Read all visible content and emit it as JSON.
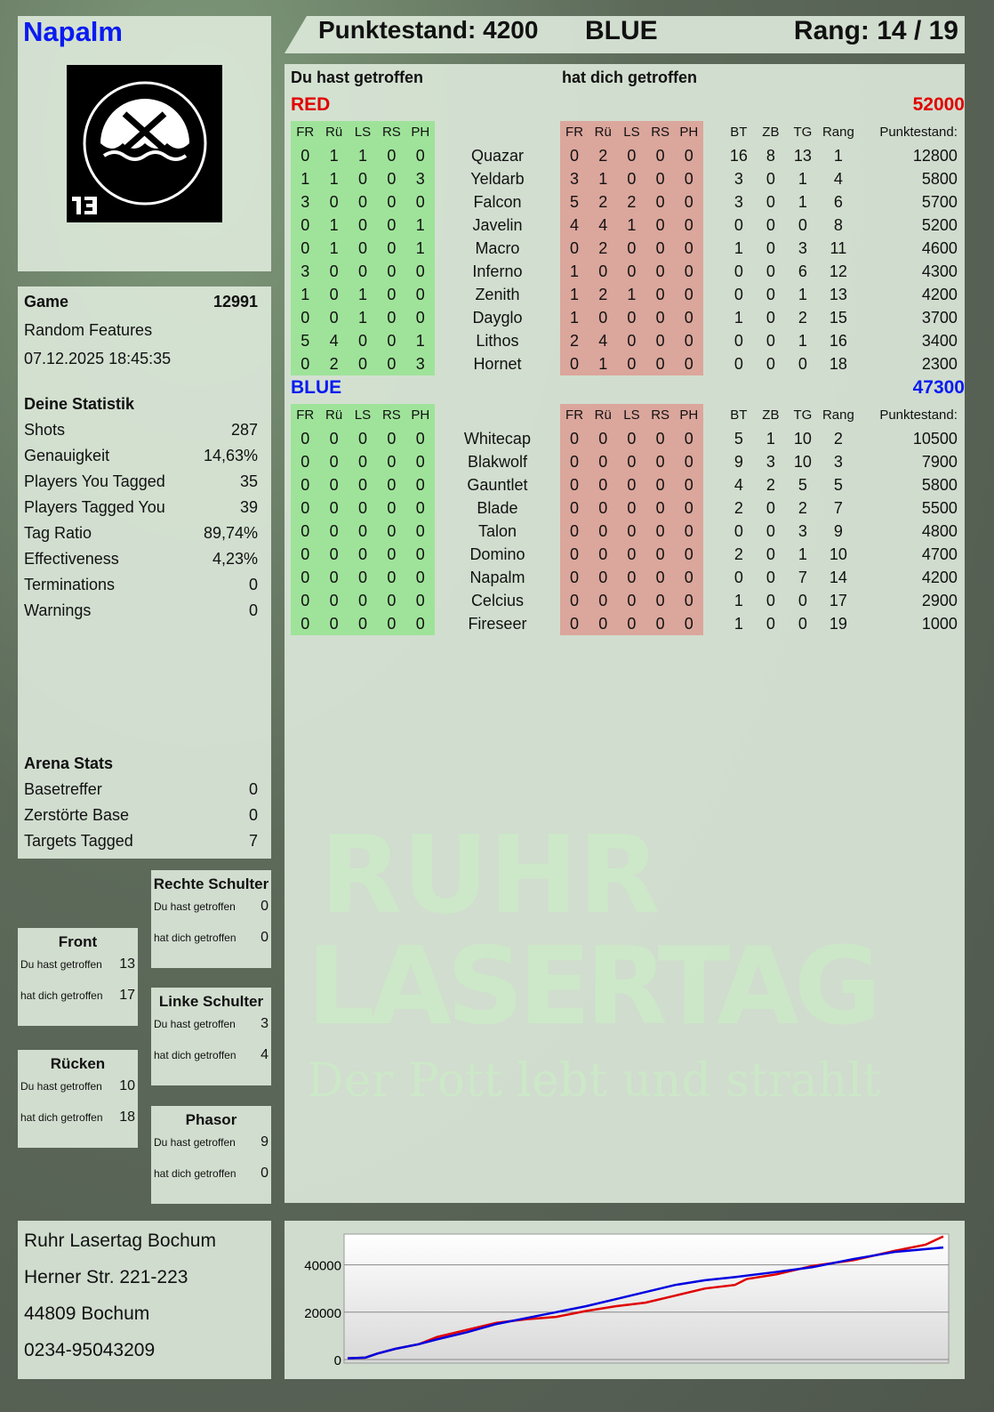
{
  "player": {
    "name": "Napalm",
    "logo_text": "RUHR LASERTAG",
    "logo_number": "13"
  },
  "header": {
    "score_label": "Punktestand: 4200",
    "team": "BLUE",
    "rank": "Rang: 14 / 19"
  },
  "main": {
    "you_hit_label": "Du hast getroffen",
    "hit_you_label": "hat dich getroffen",
    "columns": {
      "hit": [
        "FR",
        "Rü",
        "LS",
        "RS",
        "PH"
      ],
      "stats": [
        "BT",
        "ZB",
        "TG",
        "Rang",
        "Punktestand:"
      ]
    },
    "teams": [
      {
        "name": "RED",
        "score": "52000",
        "color": "#e00000",
        "players": [
          {
            "name": "Quazar",
            "you_hit": [
              0,
              1,
              1,
              0,
              0
            ],
            "hit_you": [
              0,
              2,
              0,
              0,
              0
            ],
            "bt": 16,
            "zb": 8,
            "tg": 13,
            "rang": 1,
            "score": 12800
          },
          {
            "name": "Yeldarb",
            "you_hit": [
              1,
              1,
              0,
              0,
              3
            ],
            "hit_you": [
              3,
              1,
              0,
              0,
              0
            ],
            "bt": 3,
            "zb": 0,
            "tg": 1,
            "rang": 4,
            "score": 5800
          },
          {
            "name": "Falcon",
            "you_hit": [
              3,
              0,
              0,
              0,
              0
            ],
            "hit_you": [
              5,
              2,
              2,
              0,
              0
            ],
            "bt": 3,
            "zb": 0,
            "tg": 1,
            "rang": 6,
            "score": 5700
          },
          {
            "name": "Javelin",
            "you_hit": [
              0,
              1,
              0,
              0,
              1
            ],
            "hit_you": [
              4,
              4,
              1,
              0,
              0
            ],
            "bt": 0,
            "zb": 0,
            "tg": 0,
            "rang": 8,
            "score": 5200
          },
          {
            "name": "Macro",
            "you_hit": [
              0,
              1,
              0,
              0,
              1
            ],
            "hit_you": [
              0,
              2,
              0,
              0,
              0
            ],
            "bt": 1,
            "zb": 0,
            "tg": 3,
            "rang": 11,
            "score": 4600
          },
          {
            "name": "Inferno",
            "you_hit": [
              3,
              0,
              0,
              0,
              0
            ],
            "hit_you": [
              1,
              0,
              0,
              0,
              0
            ],
            "bt": 0,
            "zb": 0,
            "tg": 6,
            "rang": 12,
            "score": 4300
          },
          {
            "name": "Zenith",
            "you_hit": [
              1,
              0,
              1,
              0,
              0
            ],
            "hit_you": [
              1,
              2,
              1,
              0,
              0
            ],
            "bt": 0,
            "zb": 0,
            "tg": 1,
            "rang": 13,
            "score": 4200
          },
          {
            "name": "Dayglo",
            "you_hit": [
              0,
              0,
              1,
              0,
              0
            ],
            "hit_you": [
              1,
              0,
              0,
              0,
              0
            ],
            "bt": 1,
            "zb": 0,
            "tg": 2,
            "rang": 15,
            "score": 3700
          },
          {
            "name": "Lithos",
            "you_hit": [
              5,
              4,
              0,
              0,
              1
            ],
            "hit_you": [
              2,
              4,
              0,
              0,
              0
            ],
            "bt": 0,
            "zb": 0,
            "tg": 1,
            "rang": 16,
            "score": 3400
          },
          {
            "name": "Hornet",
            "you_hit": [
              0,
              2,
              0,
              0,
              3
            ],
            "hit_you": [
              0,
              1,
              0,
              0,
              0
            ],
            "bt": 0,
            "zb": 0,
            "tg": 0,
            "rang": 18,
            "score": 2300
          }
        ]
      },
      {
        "name": "BLUE",
        "score": "47300",
        "color": "#0a1bf0",
        "players": [
          {
            "name": "Whitecap",
            "you_hit": [
              0,
              0,
              0,
              0,
              0
            ],
            "hit_you": [
              0,
              0,
              0,
              0,
              0
            ],
            "bt": 5,
            "zb": 1,
            "tg": 10,
            "rang": 2,
            "score": 10500
          },
          {
            "name": "Blakwolf",
            "you_hit": [
              0,
              0,
              0,
              0,
              0
            ],
            "hit_you": [
              0,
              0,
              0,
              0,
              0
            ],
            "bt": 9,
            "zb": 3,
            "tg": 10,
            "rang": 3,
            "score": 7900
          },
          {
            "name": "Gauntlet",
            "you_hit": [
              0,
              0,
              0,
              0,
              0
            ],
            "hit_you": [
              0,
              0,
              0,
              0,
              0
            ],
            "bt": 4,
            "zb": 2,
            "tg": 5,
            "rang": 5,
            "score": 5800
          },
          {
            "name": "Blade",
            "you_hit": [
              0,
              0,
              0,
              0,
              0
            ],
            "hit_you": [
              0,
              0,
              0,
              0,
              0
            ],
            "bt": 2,
            "zb": 0,
            "tg": 2,
            "rang": 7,
            "score": 5500
          },
          {
            "name": "Talon",
            "you_hit": [
              0,
              0,
              0,
              0,
              0
            ],
            "hit_you": [
              0,
              0,
              0,
              0,
              0
            ],
            "bt": 0,
            "zb": 0,
            "tg": 3,
            "rang": 9,
            "score": 4800
          },
          {
            "name": "Domino",
            "you_hit": [
              0,
              0,
              0,
              0,
              0
            ],
            "hit_you": [
              0,
              0,
              0,
              0,
              0
            ],
            "bt": 2,
            "zb": 0,
            "tg": 1,
            "rang": 10,
            "score": 4700
          },
          {
            "name": "Napalm",
            "you_hit": [
              0,
              0,
              0,
              0,
              0
            ],
            "hit_you": [
              0,
              0,
              0,
              0,
              0
            ],
            "bt": 0,
            "zb": 0,
            "tg": 7,
            "rang": 14,
            "score": 4200
          },
          {
            "name": "Celcius",
            "you_hit": [
              0,
              0,
              0,
              0,
              0
            ],
            "hit_you": [
              0,
              0,
              0,
              0,
              0
            ],
            "bt": 1,
            "zb": 0,
            "tg": 0,
            "rang": 17,
            "score": 2900
          },
          {
            "name": "Fireseer",
            "you_hit": [
              0,
              0,
              0,
              0,
              0
            ],
            "hit_you": [
              0,
              0,
              0,
              0,
              0
            ],
            "bt": 1,
            "zb": 0,
            "tg": 0,
            "rang": 19,
            "score": 1000
          }
        ]
      }
    ]
  },
  "game": {
    "label": "Game",
    "id": "12991",
    "mode": "Random Features",
    "datetime": "07.12.2025 18:45:35"
  },
  "statistics": {
    "title": "Deine Statistik",
    "items": [
      {
        "label": "Shots",
        "value": "287"
      },
      {
        "label": "Genauigkeit",
        "value": "14,63%"
      },
      {
        "label": "Players You Tagged",
        "value": "35"
      },
      {
        "label": "Players Tagged You",
        "value": "39"
      },
      {
        "label": "Tag Ratio",
        "value": "89,74%"
      },
      {
        "label": "Effectiveness",
        "value": "4,23%"
      },
      {
        "label": "Terminations",
        "value": "0"
      },
      {
        "label": "Warnings",
        "value": "0"
      }
    ]
  },
  "arena": {
    "title": "Arena Stats",
    "items": [
      {
        "label": "Basetreffer",
        "value": "0"
      },
      {
        "label": "Zerstörte Base",
        "value": "0"
      },
      {
        "label": "Targets Tagged",
        "value": "7"
      }
    ]
  },
  "hit_zones": {
    "you_hit_label": "Du hast getroffen",
    "hit_you_label": "hat dich getroffen",
    "zones": [
      {
        "name": "Rechte Schulter",
        "you_hit": "0",
        "hit_you": "0"
      },
      {
        "name": "Front",
        "you_hit": "13",
        "hit_you": "17"
      },
      {
        "name": "Linke Schulter",
        "you_hit": "3",
        "hit_you": "4"
      },
      {
        "name": "Rücken",
        "you_hit": "10",
        "hit_you": "18"
      },
      {
        "name": "Phasor",
        "you_hit": "9",
        "hit_you": "0"
      }
    ]
  },
  "address": {
    "lines": [
      "Ruhr Lasertag Bochum",
      "Herner Str. 221-223",
      "44809 Bochum",
      "0234-95043209"
    ]
  },
  "watermark": {
    "line1": "RUHR",
    "line2": "LASERTAG",
    "slogan": "Der Pott lebt und strahlt"
  },
  "chart_data": {
    "type": "line",
    "title": "",
    "xlabel": "",
    "ylabel": "",
    "ylim": [
      0,
      53000
    ],
    "yticks": [
      0,
      20000,
      40000
    ],
    "grid": true,
    "series": [
      {
        "color": "#e00000",
        "x": [
          0,
          3,
          5,
          8,
          12,
          15,
          20,
          25,
          30,
          35,
          40,
          45,
          50,
          55,
          60,
          65,
          67,
          72,
          78,
          85,
          92,
          97,
          100
        ],
        "y": [
          500,
          800,
          2500,
          4500,
          6500,
          9500,
          12500,
          15500,
          17000,
          18000,
          20500,
          22500,
          24000,
          27000,
          30000,
          31500,
          34000,
          36000,
          39500,
          42000,
          46000,
          48500,
          52000
        ]
      },
      {
        "color": "#0000e0",
        "x": [
          0,
          3,
          5,
          8,
          12,
          15,
          20,
          25,
          30,
          35,
          40,
          45,
          50,
          55,
          60,
          65,
          72,
          78,
          85,
          92,
          100
        ],
        "y": [
          500,
          800,
          2500,
          4500,
          6500,
          8500,
          11500,
          15000,
          17500,
          20000,
          22500,
          25500,
          28500,
          31500,
          33500,
          34800,
          37000,
          39000,
          42500,
          45500,
          47300
        ]
      }
    ]
  }
}
